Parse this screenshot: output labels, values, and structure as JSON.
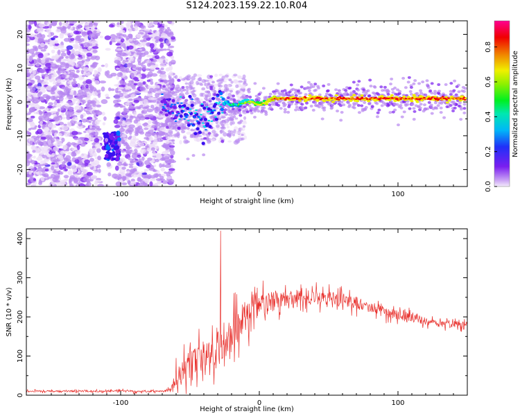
{
  "page_title": "S124.2023.159.22.10.R04",
  "colors": {
    "axis": "#000000",
    "snr_line": "#e8302c",
    "colormap": [
      "#ecdcf8",
      "#b888f0",
      "#7a1ef0",
      "#3a10f0",
      "#0070ff",
      "#00e0e8",
      "#00f040",
      "#c0f000",
      "#f0f000",
      "#f08000",
      "#f00000",
      "#ff0090"
    ]
  },
  "chart_data": [
    {
      "type": "heatmap",
      "title": "",
      "xlabel": "Height of straight line (km)",
      "ylabel": "Frequency (Hz)",
      "xlim": [
        -168,
        150
      ],
      "ylim": [
        -25,
        24
      ],
      "xticks": [
        -100,
        0,
        100
      ],
      "yticks": [
        -20,
        -10,
        0,
        10,
        20
      ],
      "grid": false,
      "colorbar": {
        "label": "Normalized spectral amplitude",
        "range": [
          0,
          0.95
        ],
        "ticks": [
          0.0,
          0.2,
          0.4,
          0.6,
          0.8
        ]
      },
      "features": {
        "noise_region_x": [
          -168,
          -70
        ],
        "noise_gap_x": [
          -115,
          -103
        ],
        "trace": {
          "x": [
            -70,
            -60,
            -55,
            -50,
            -45,
            -40,
            -35,
            -30,
            -25,
            -20,
            -15,
            -10,
            -5,
            0,
            5,
            10,
            20,
            40,
            60,
            80,
            100,
            120,
            148
          ],
          "freq": [
            -1,
            -2,
            -3,
            -4,
            -6,
            -5,
            -3,
            -1,
            0,
            -1,
            -1,
            0,
            0,
            -1,
            0,
            1,
            1,
            1,
            1,
            1,
            1,
            1,
            1
          ],
          "amplitude": [
            0.35,
            0.35,
            0.4,
            0.4,
            0.4,
            0.45,
            0.45,
            0.45,
            0.5,
            0.5,
            0.55,
            0.6,
            0.65,
            0.7,
            0.75,
            0.8,
            0.85,
            0.88,
            0.9,
            0.9,
            0.9,
            0.9,
            0.9
          ]
        },
        "blob": {
          "x": [
            -112,
            -101
          ],
          "freq": [
            -17,
            -9
          ]
        }
      }
    },
    {
      "type": "line",
      "title": "",
      "xlabel": "Height of straight line (km)",
      "ylabel": "SNR (10 * v/v)",
      "xlim": [
        -168,
        150
      ],
      "ylim": [
        0,
        425
      ],
      "xticks": [
        -100,
        0,
        100
      ],
      "yticks": [
        0,
        100,
        200,
        300,
        400
      ],
      "grid": false,
      "series": [
        {
          "envelope_x": [
            -168,
            -140,
            -110,
            -100,
            -90,
            -70,
            -64,
            -60,
            -55,
            -50,
            -45,
            -40,
            -35,
            -30,
            -25,
            -20,
            -15,
            -10,
            -5,
            0,
            5,
            10,
            20,
            30,
            40,
            50,
            60,
            70,
            80,
            90,
            100,
            110,
            120,
            130,
            140,
            150
          ],
          "envelope_mean": [
            10,
            10,
            10,
            12,
            10,
            10,
            14,
            40,
            60,
            80,
            90,
            100,
            110,
            130,
            140,
            160,
            180,
            200,
            215,
            225,
            232,
            238,
            245,
            250,
            250,
            248,
            244,
            235,
            225,
            212,
            205,
            198,
            190,
            185,
            182,
            180
          ],
          "envelope_spread": [
            5,
            5,
            5,
            6,
            6,
            6,
            10,
            60,
            70,
            75,
            80,
            85,
            95,
            110,
            110,
            110,
            100,
            90,
            80,
            75,
            65,
            55,
            45,
            40,
            40,
            40,
            35,
            35,
            30,
            28,
            25,
            25,
            22,
            20,
            20,
            18
          ],
          "peak": {
            "x": -28,
            "y": 420
          }
        }
      ]
    }
  ]
}
